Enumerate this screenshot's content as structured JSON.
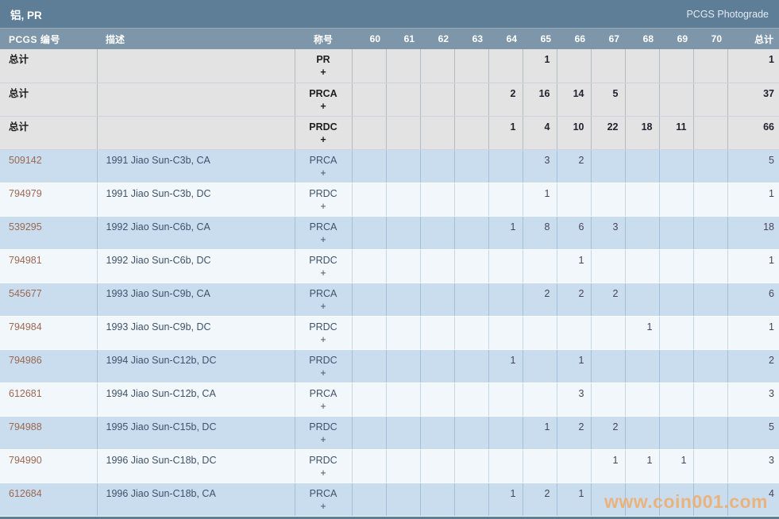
{
  "title_bar": {
    "title": "铝, PR",
    "right_link": "PCGS Photograde"
  },
  "table": {
    "headers": {
      "pcgs": "PCGS 编号",
      "desc": "描述",
      "designation": "称号",
      "grades": [
        "60",
        "61",
        "62",
        "63",
        "64",
        "65",
        "66",
        "67",
        "68",
        "69",
        "70"
      ],
      "total": "总计"
    },
    "summary_label": "总计",
    "rows": [
      {
        "type": "summary",
        "pcgs": "总计",
        "desc": "",
        "designation": "PR",
        "plus": "+",
        "grades": [
          "",
          "",
          "",
          "",
          "",
          "1",
          "",
          "",
          "",
          "",
          ""
        ],
        "total": "1"
      },
      {
        "type": "summary",
        "pcgs": "总计",
        "desc": "",
        "designation": "PRCA",
        "plus": "+",
        "grades": [
          "",
          "",
          "",
          "",
          "2",
          "16",
          "14",
          "5",
          "",
          "",
          ""
        ],
        "total": "37"
      },
      {
        "type": "summary",
        "pcgs": "总计",
        "desc": "",
        "designation": "PRDC",
        "plus": "+",
        "grades": [
          "",
          "",
          "",
          "",
          "1",
          "4",
          "10",
          "22",
          "18",
          "11",
          ""
        ],
        "total": "66"
      },
      {
        "type": "data",
        "shade": "blue",
        "pcgs": "509142",
        "desc": "1991 Jiao Sun-C3b, CA",
        "designation": "PRCA",
        "plus": "+",
        "grades": [
          "",
          "",
          "",
          "",
          "",
          "3",
          "2",
          "",
          "",
          "",
          ""
        ],
        "total": "5"
      },
      {
        "type": "data",
        "shade": "light",
        "pcgs": "794979",
        "desc": "1991 Jiao Sun-C3b, DC",
        "designation": "PRDC",
        "plus": "+",
        "grades": [
          "",
          "",
          "",
          "",
          "",
          "1",
          "",
          "",
          "",
          "",
          ""
        ],
        "total": "1"
      },
      {
        "type": "data",
        "shade": "blue",
        "pcgs": "539295",
        "desc": "1992 Jiao Sun-C6b, CA",
        "designation": "PRCA",
        "plus": "+",
        "grades": [
          "",
          "",
          "",
          "",
          "1",
          "8",
          "6",
          "3",
          "",
          "",
          ""
        ],
        "total": "18"
      },
      {
        "type": "data",
        "shade": "light",
        "pcgs": "794981",
        "desc": "1992 Jiao Sun-C6b, DC",
        "designation": "PRDC",
        "plus": "+",
        "grades": [
          "",
          "",
          "",
          "",
          "",
          "",
          "1",
          "",
          "",
          "",
          ""
        ],
        "total": "1"
      },
      {
        "type": "data",
        "shade": "blue",
        "pcgs": "545677",
        "desc": "1993 Jiao Sun-C9b, CA",
        "designation": "PRCA",
        "plus": "+",
        "grades": [
          "",
          "",
          "",
          "",
          "",
          "2",
          "2",
          "2",
          "",
          "",
          ""
        ],
        "total": "6"
      },
      {
        "type": "data",
        "shade": "light",
        "pcgs": "794984",
        "desc": "1993 Jiao Sun-C9b, DC",
        "designation": "PRDC",
        "plus": "+",
        "grades": [
          "",
          "",
          "",
          "",
          "",
          "",
          "",
          "",
          "1",
          "",
          ""
        ],
        "total": "1"
      },
      {
        "type": "data",
        "shade": "blue",
        "pcgs": "794986",
        "desc": "1994 Jiao Sun-C12b, DC",
        "designation": "PRDC",
        "plus": "+",
        "grades": [
          "",
          "",
          "",
          "",
          "1",
          "",
          "1",
          "",
          "",
          "",
          ""
        ],
        "total": "2"
      },
      {
        "type": "data",
        "shade": "light",
        "pcgs": "612681",
        "desc": "1994 Jiao Sun-C12b, CA",
        "designation": "PRCA",
        "plus": "+",
        "grades": [
          "",
          "",
          "",
          "",
          "",
          "",
          "3",
          "",
          "",
          "",
          ""
        ],
        "total": "3"
      },
      {
        "type": "data",
        "shade": "blue",
        "pcgs": "794988",
        "desc": "1995 Jiao Sun-C15b, DC",
        "designation": "PRDC",
        "plus": "+",
        "grades": [
          "",
          "",
          "",
          "",
          "",
          "1",
          "2",
          "2",
          "",
          "",
          ""
        ],
        "total": "5"
      },
      {
        "type": "data",
        "shade": "light",
        "pcgs": "794990",
        "desc": "1996 Jiao Sun-C18b, DC",
        "designation": "PRDC",
        "plus": "+",
        "grades": [
          "",
          "",
          "",
          "",
          "",
          "",
          "",
          "1",
          "1",
          "1",
          ""
        ],
        "total": "3"
      },
      {
        "type": "data",
        "shade": "blue",
        "pcgs": "612684",
        "desc": "1996 Jiao Sun-C18b, CA",
        "designation": "PRCA",
        "plus": "+",
        "grades": [
          "",
          "",
          "",
          "",
          "1",
          "2",
          "1",
          "",
          "",
          "",
          ""
        ],
        "total": "4"
      }
    ]
  },
  "watermark": "www.coin001.com",
  "colors": {
    "title_bar": "#5e7d97",
    "header_row": "#7e96aa",
    "summary_row_bg": "#e3e3e3",
    "row_blue_bg": "#c9ddee",
    "row_light_bg": "#f2f7fb",
    "pcgs_link": "#9c6852",
    "watermark": "#f2aa64"
  }
}
